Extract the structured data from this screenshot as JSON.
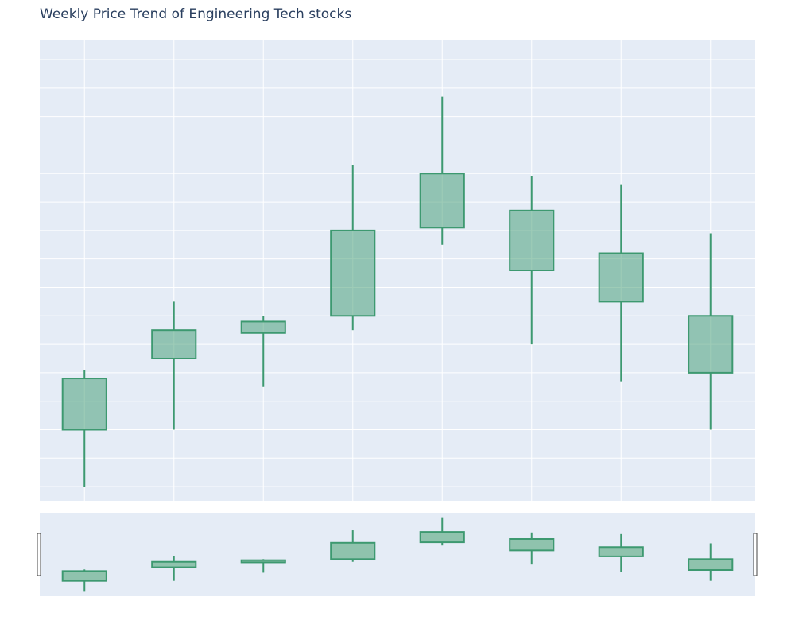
{
  "chart_data": {
    "type": "candlestick",
    "title": "Weekly Price Trend of Engineering Tech stocks",
    "xlabel": "",
    "ylabel": "",
    "grid": true,
    "legend": "none",
    "has_range_slider": true,
    "ylim": [
      99.5,
      115.7
    ],
    "x": [
      1,
      2,
      3,
      4,
      5,
      6,
      7,
      8
    ],
    "open": [
      102.0,
      104.5,
      105.4,
      106.0,
      109.1,
      107.6,
      106.5,
      104.0
    ],
    "high": [
      104.1,
      106.5,
      106.0,
      111.3,
      113.7,
      110.9,
      110.6,
      108.9
    ],
    "low": [
      100.0,
      102.0,
      103.5,
      105.5,
      108.5,
      105.0,
      103.7,
      102.0
    ],
    "close": [
      103.8,
      105.5,
      105.8,
      109.0,
      111.0,
      109.7,
      108.2,
      106.0
    ],
    "colors": {
      "increasing_line": "#3d9970",
      "increasing_fill": "rgba(61,153,112,0.5)",
      "plot_bg": "#e5ecf6",
      "grid": "#ffffff",
      "title": "#2a3f5f"
    }
  }
}
